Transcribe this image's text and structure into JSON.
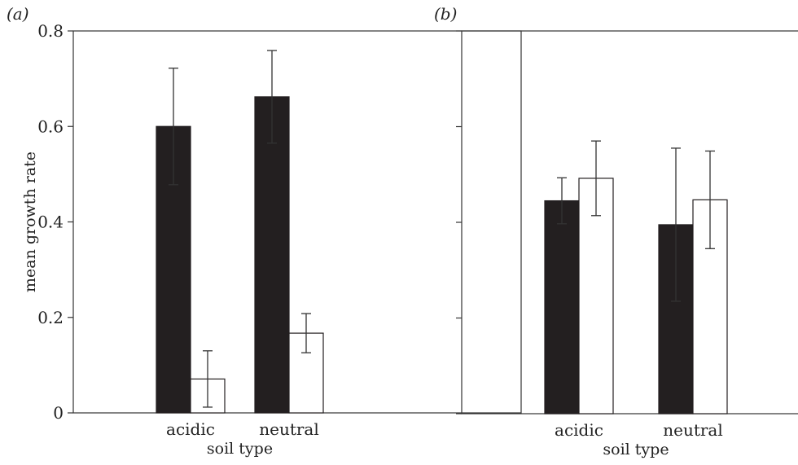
{
  "chart_data": [
    {
      "type": "bar",
      "panel_label": "(a)",
      "categories": [
        "acidic",
        "neutral"
      ],
      "series": [
        {
          "color": "#231f20",
          "values": [
            0.6,
            0.662
          ],
          "errors": [
            0.122,
            0.097
          ]
        },
        {
          "color": "#ffffff",
          "values": [
            0.071,
            0.167
          ],
          "errors": [
            0.059,
            0.041
          ]
        }
      ],
      "xlabel": "soil type",
      "ylabel": "mean growth rate",
      "ylim": [
        0,
        0.8
      ],
      "yticks": [
        0,
        0.2,
        0.4,
        0.6,
        0.8
      ],
      "ytick_labels": [
        "0",
        "0.2",
        "0.4",
        "0.6",
        "0.8"
      ],
      "grid": false,
      "legend": false
    },
    {
      "type": "bar",
      "panel_label": "(b)",
      "categories": [
        "acidic",
        "neutral"
      ],
      "series": [
        {
          "color": "#231f20",
          "values": [
            0.445,
            0.395
          ],
          "errors": [
            0.048,
            0.16
          ]
        },
        {
          "color": "#ffffff",
          "values": [
            0.492,
            0.447
          ],
          "errors": [
            0.078,
            0.102
          ]
        }
      ],
      "xlabel": "soil type",
      "ylabel": "",
      "ylim": [
        0,
        0.8
      ],
      "yticks": [
        0,
        0.2,
        0.4,
        0.6,
        0.8
      ],
      "ytick_labels": [],
      "grid": false,
      "legend": false
    }
  ]
}
